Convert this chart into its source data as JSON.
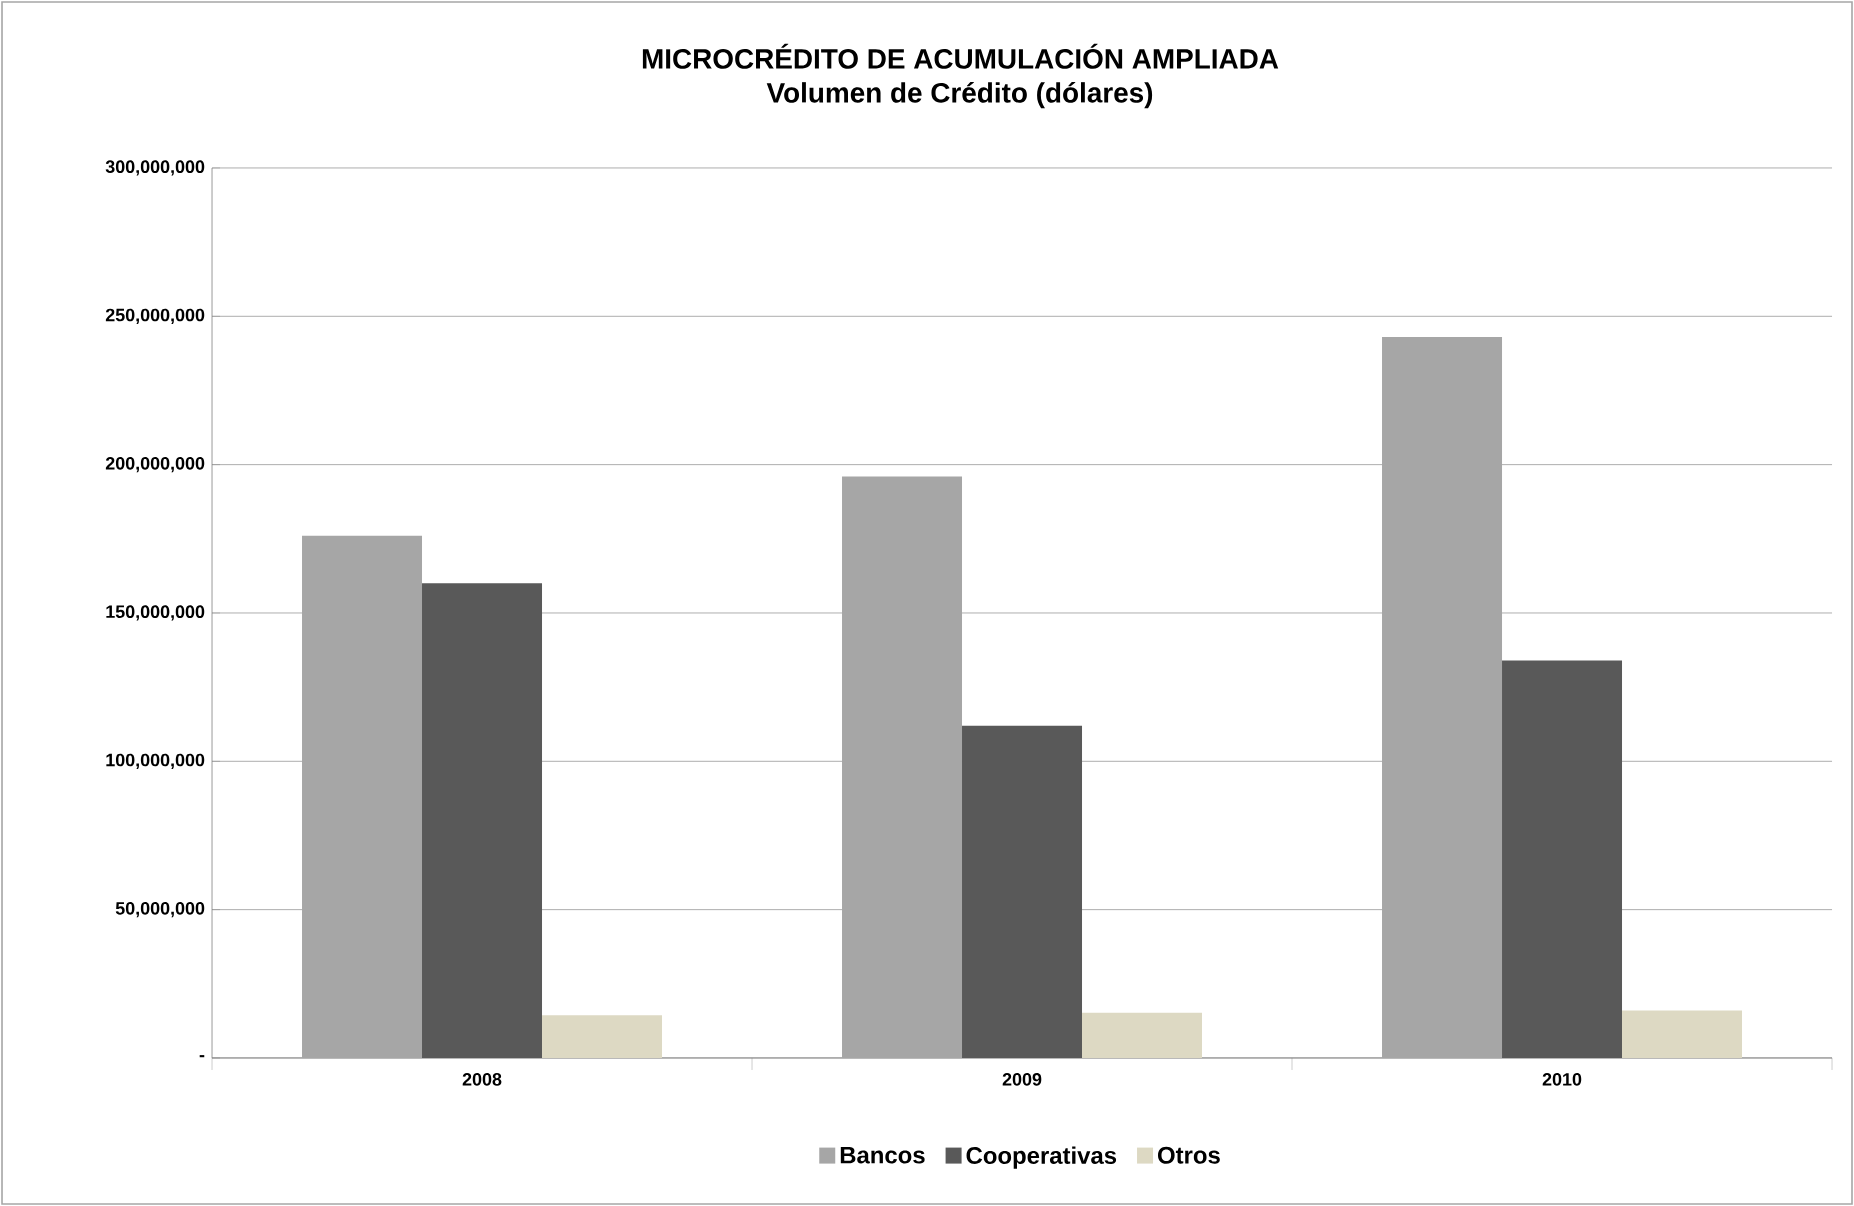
{
  "chart_data": {
    "type": "bar",
    "title": "MICROCRÉDITO DE ACUMULACIÓN AMPLIADA",
    "subtitle": "Volumen de Crédito (dólares)",
    "categories": [
      "2008",
      "2009",
      "2010"
    ],
    "series": [
      {
        "name": "Bancos",
        "color": "#a6a6a6",
        "values": [
          176000000,
          196000000,
          243000000
        ]
      },
      {
        "name": "Cooperativas",
        "color": "#595959",
        "values": [
          160000000,
          112000000,
          134000000
        ]
      },
      {
        "name": "Otros",
        "color": "#ddd9c3",
        "values": [
          14400000,
          15200000,
          16000000
        ]
      }
    ],
    "ylim": [
      0,
      300000000
    ],
    "yticks": [
      {
        "value": 0,
        "label": "-"
      },
      {
        "value": 50000000,
        "label": "50,000,000"
      },
      {
        "value": 100000000,
        "label": "100,000,000"
      },
      {
        "value": 150000000,
        "label": "150,000,000"
      },
      {
        "value": 200000000,
        "label": "200,000,000"
      },
      {
        "value": 250000000,
        "label": "250,000,000"
      },
      {
        "value": 300000000,
        "label": "300,000,000"
      }
    ],
    "grid": "y",
    "legend": "bottom"
  }
}
